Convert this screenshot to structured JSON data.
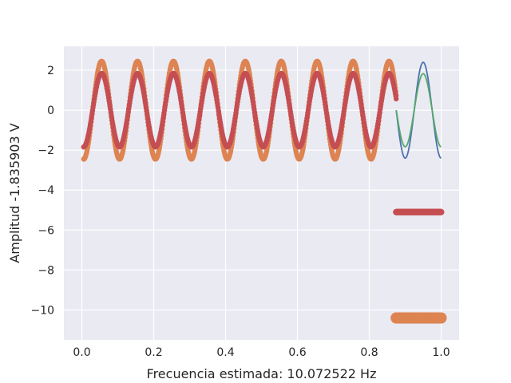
{
  "chart_data": {
    "type": "scatter",
    "title": "",
    "xlabel": "Frecuencia estimada: 10.072522 Hz",
    "ylabel": "Amplitud -1.835903 V",
    "xlim": [
      -0.05,
      1.05
    ],
    "ylim": [
      -11.5,
      3.2
    ],
    "xticks": [
      0.0,
      0.2,
      0.4,
      0.6,
      0.8,
      1.0
    ],
    "xtick_labels": [
      "0.0",
      "0.2",
      "0.4",
      "0.6",
      "0.8",
      "1.0"
    ],
    "yticks": [
      2,
      0,
      -2,
      -4,
      -6,
      -8,
      -10
    ],
    "ytick_labels": [
      "2",
      "0",
      "−2",
      "−4",
      "−6",
      "−8",
      "−10"
    ],
    "grid": true,
    "legend": "none",
    "background": "#eaeaf2",
    "series": [
      {
        "kind": "line",
        "color": "#4c72b0",
        "x": [
          0.875,
          0.9,
          0.925,
          0.95,
          0.975,
          1.0
        ],
        "y": [
          -0.7,
          -1.95,
          0.5,
          2.4,
          0.3,
          -2.4
        ]
      },
      {
        "kind": "line",
        "color": "#55a868",
        "x": [
          0.875,
          0.9,
          0.925,
          0.95,
          0.975,
          1.0
        ],
        "y": [
          -0.5,
          -1.5,
          0.4,
          1.83,
          0.25,
          -1.8
        ]
      },
      {
        "kind": "scatter",
        "color": "#dd8452",
        "signal": {
          "freq_hz": 10.0,
          "amplitude": 2.45,
          "x_start": 0.005,
          "x_end": 0.875,
          "offset_x": 0.0
        }
      },
      {
        "kind": "scatter",
        "color": "#c44e52",
        "signal": {
          "freq_hz": 10.0,
          "amplitude": 1.84,
          "x_start": 0.005,
          "x_end": 0.875,
          "offset_x": 0.0
        }
      },
      {
        "kind": "scatter",
        "color": "#dd8452",
        "constant": {
          "y": -10.4,
          "x_start": 0.875,
          "x_end": 1.0
        }
      },
      {
        "kind": "scatter",
        "color": "#c44e52",
        "constant": {
          "y": -5.1,
          "x_start": 0.875,
          "x_end": 1.0
        }
      }
    ]
  }
}
